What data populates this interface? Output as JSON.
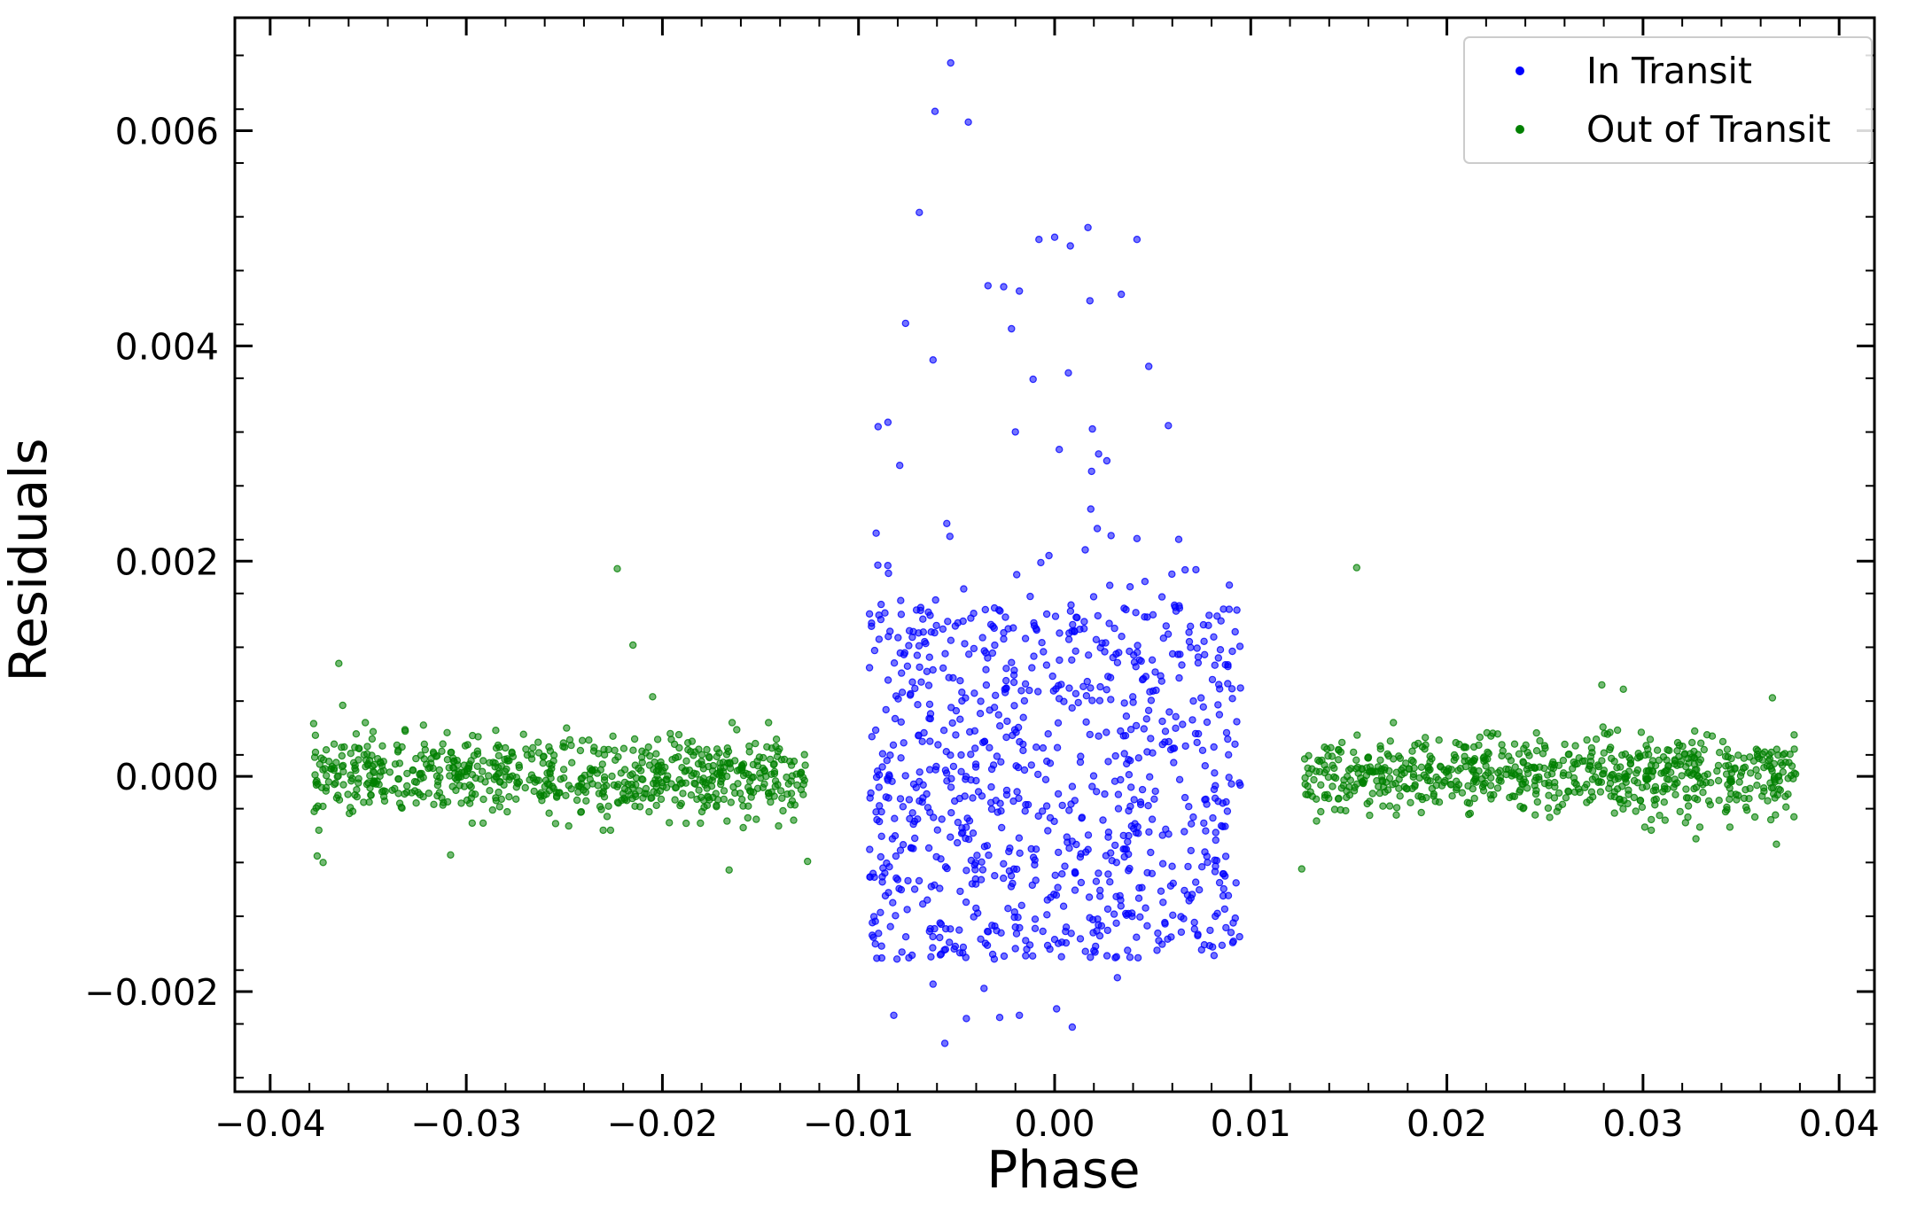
{
  "chart_data": {
    "type": "scatter",
    "title": "",
    "xlabel": "Phase",
    "ylabel": "Residuals",
    "xlim": [
      -0.0418,
      0.0418
    ],
    "ylim": [
      -0.00293,
      0.00705
    ],
    "x_ticks": [
      -0.04,
      -0.03,
      -0.02,
      -0.01,
      0.0,
      0.01,
      0.02,
      0.03,
      0.04
    ],
    "x_tick_labels": [
      "−0.04",
      "−0.03",
      "−0.02",
      "−0.01",
      "0.00",
      "0.01",
      "0.02",
      "0.03",
      "0.04"
    ],
    "y_ticks": [
      -0.002,
      0.0,
      0.002,
      0.004,
      0.006
    ],
    "y_tick_labels": [
      "−0.002",
      "0.000",
      "0.002",
      "0.004",
      "0.006"
    ],
    "grid": false,
    "legend_position": "top-right",
    "series": [
      {
        "name": "In Transit",
        "color": "#0000ff",
        "x_range": [
          -0.0095,
          0.0095
        ],
        "bulk_range": [
          -0.0017,
          0.0016
        ],
        "n_bulk_points": 900,
        "sample_points": [
          [
            -0.0053,
            0.00663
          ],
          [
            -0.0061,
            0.00618
          ],
          [
            -0.0044,
            0.00608
          ],
          [
            -0.0069,
            0.00524
          ],
          [
            -0.0008,
            0.00499
          ],
          [
            0.0,
            0.00501
          ],
          [
            0.0008,
            0.00493
          ],
          [
            0.0017,
            0.0051
          ],
          [
            0.0042,
            0.00499
          ],
          [
            -0.0034,
            0.00456
          ],
          [
            -0.0026,
            0.00455
          ],
          [
            -0.0018,
            0.00451
          ],
          [
            0.0018,
            0.00442
          ],
          [
            0.0034,
            0.00448
          ],
          [
            -0.0076,
            0.00421
          ],
          [
            -0.0022,
            0.00416
          ],
          [
            -0.0011,
            0.00369
          ],
          [
            0.0007,
            0.00375
          ],
          [
            0.0048,
            0.00381
          ],
          [
            -0.0085,
            0.00329
          ],
          [
            -0.009,
            0.00325
          ],
          [
            0.0058,
            0.00326
          ],
          [
            -0.0079,
            0.00289
          ],
          [
            -0.0062,
            0.00387
          ],
          [
            -0.0055,
            0.00235
          ],
          [
            0.0042,
            0.00221
          ],
          [
            -0.0091,
            0.00226
          ],
          [
            -0.0062,
            -0.00193
          ],
          [
            -0.0082,
            -0.00222
          ],
          [
            -0.0036,
            -0.00197
          ],
          [
            -0.0045,
            -0.00225
          ],
          [
            -0.0028,
            -0.00224
          ],
          [
            -0.0018,
            -0.00222
          ],
          [
            0.0001,
            -0.00216
          ],
          [
            0.0009,
            -0.00233
          ],
          [
            -0.0056,
            -0.00248
          ],
          [
            0.0032,
            -0.00187
          ]
        ]
      },
      {
        "name": "Out of Transit",
        "color": "#008000",
        "x_ranges": [
          [
            -0.0378,
            -0.0127
          ],
          [
            0.0127,
            0.0378
          ]
        ],
        "bulk_range": [
          -0.0004,
          0.0004
        ],
        "n_bulk_points": 1400,
        "sample_points": [
          [
            -0.0223,
            0.00193
          ],
          [
            0.0154,
            0.00194
          ],
          [
            -0.0215,
            0.00122
          ],
          [
            -0.0365,
            0.00105
          ],
          [
            -0.0363,
            0.00066
          ],
          [
            -0.0205,
            0.00074
          ],
          [
            0.0279,
            0.00085
          ],
          [
            0.029,
            0.00081
          ],
          [
            0.0366,
            0.00073
          ],
          [
            -0.0376,
            -0.00074
          ],
          [
            -0.0373,
            -0.0008
          ],
          [
            -0.0308,
            -0.00073
          ],
          [
            -0.0166,
            -0.00087
          ],
          [
            0.0126,
            -0.00086
          ],
          [
            -0.0126,
            -0.00079
          ],
          [
            0.0368,
            -0.00063
          ],
          [
            0.0327,
            -0.00058
          ]
        ]
      }
    ]
  }
}
